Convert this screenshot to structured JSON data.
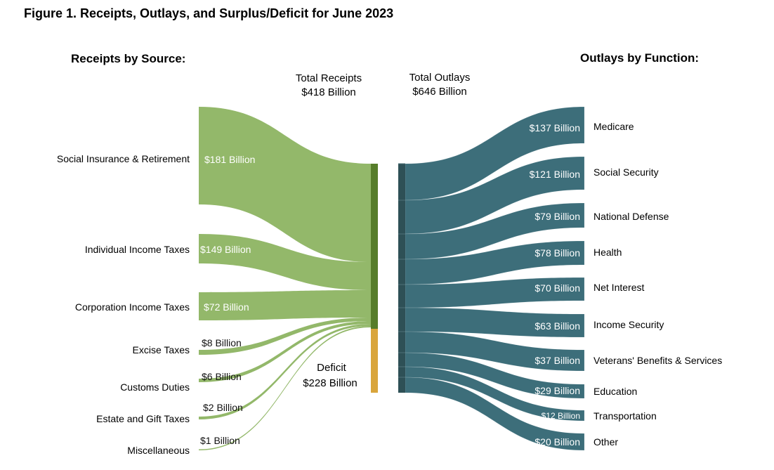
{
  "title": "Figure 1. Receipts, Outlays, and Surplus/Deficit for June 2023",
  "chart_data": {
    "type": "sankey",
    "title": "Figure 1. Receipts, Outlays, and Surplus/Deficit for June 2023",
    "receipts_heading": "Receipts by Source:",
    "outlays_heading": "Outlays by Function:",
    "total_receipts": {
      "label": "Total Receipts",
      "value_label": "$418 Billion",
      "value": 418
    },
    "total_outlays": {
      "label": "Total Outlays",
      "value_label": "$646 Billion",
      "value": 646
    },
    "deficit": {
      "label": "Deficit",
      "value_label": "$228 Billion",
      "value": 228
    },
    "units": "Billion USD",
    "receipts": [
      {
        "name": "Social Insurance & Retirement",
        "value": 181,
        "value_label": "$181 Billion"
      },
      {
        "name": "Individual Income Taxes",
        "value": 149,
        "value_label": "$149 Billion"
      },
      {
        "name": "Corporation Income Taxes",
        "value": 72,
        "value_label": "$72 Billion"
      },
      {
        "name": "Excise Taxes",
        "value": 8,
        "value_label": "$8 Billion"
      },
      {
        "name": "Customs Duties",
        "value": 6,
        "value_label": "$6 Billion"
      },
      {
        "name": "Estate and Gift Taxes",
        "value": 2,
        "value_label": "$2 Billion"
      },
      {
        "name": "Miscellaneous",
        "value": 1,
        "value_label": "$1 Billion"
      }
    ],
    "outlays": [
      {
        "name": "Medicare",
        "value": 137,
        "value_label": "$137 Billion"
      },
      {
        "name": "Social Security",
        "value": 121,
        "value_label": "$121 Billion"
      },
      {
        "name": "National Defense",
        "value": 79,
        "value_label": "$79 Billion"
      },
      {
        "name": "Health",
        "value": 78,
        "value_label": "$78 Billion"
      },
      {
        "name": "Net Interest",
        "value": 70,
        "value_label": "$70 Billion"
      },
      {
        "name": "Income Security",
        "value": 63,
        "value_label": "$63 Billion"
      },
      {
        "name": "Veterans' Benefits & Services",
        "value": 37,
        "value_label": "$37 Billion"
      },
      {
        "name": "Education",
        "value": 29,
        "value_label": "$29 Billion"
      },
      {
        "name": "Transportation",
        "value": 12,
        "value_label": "$12 Billion"
      },
      {
        "name": "Other",
        "value": 20,
        "value_label": "$20 Billion"
      }
    ],
    "colors": {
      "receipt_flow": "#93b86a",
      "receipt_node": "#567d2a",
      "deficit_node": "#d9a53c",
      "outlay_flow": "#3d6e7a",
      "outlay_node": "#2e5056"
    }
  }
}
